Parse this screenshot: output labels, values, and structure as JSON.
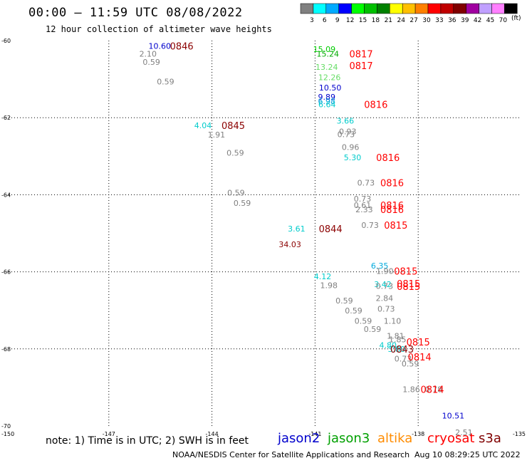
{
  "header": {
    "title": "00:00 – 11:59 UTC 08/08/2022",
    "subtitle": "12 hour collection of altimeter wave heights"
  },
  "legend": {
    "units": "(ft)",
    "bins": [
      {
        "label": "3",
        "color": "#808080"
      },
      {
        "label": "6",
        "color": "#00ffff"
      },
      {
        "label": "9",
        "color": "#00aaff"
      },
      {
        "label": "12",
        "color": "#0000ff"
      },
      {
        "label": "15",
        "color": "#00ff00"
      },
      {
        "label": "18",
        "color": "#00c000"
      },
      {
        "label": "21",
        "color": "#008000"
      },
      {
        "label": "24",
        "color": "#ffff00"
      },
      {
        "label": "27",
        "color": "#ffc000"
      },
      {
        "label": "30",
        "color": "#ff8000"
      },
      {
        "label": "33",
        "color": "#ff0000"
      },
      {
        "label": "36",
        "color": "#c00000"
      },
      {
        "label": "39",
        "color": "#800000"
      },
      {
        "label": "42",
        "color": "#a000a0"
      },
      {
        "label": "45",
        "color": "#c0a0ff"
      },
      {
        "label": "70",
        "color": "#ff80ff"
      },
      {
        "label": "",
        "color": "#000000"
      }
    ]
  },
  "footer": {
    "note": "note: 1) Time is in UTC; 2) SWH is in feet",
    "credit": "NOAA/NESDIS Center for Satellite Applications and Research",
    "timestamp": "Aug 10 08:29:25 UTC 2022",
    "satellites": [
      {
        "name": "jason2",
        "color": "#0000cc"
      },
      {
        "name": "jason3",
        "color": "#00a000"
      },
      {
        "name": "altika",
        "color": "#ff8c00"
      },
      {
        "name": "cryosat",
        "color": "#ff0000"
      },
      {
        "name": "s3a",
        "color": "#800000"
      }
    ]
  },
  "chart_data": {
    "type": "scatter",
    "xlim": [
      -150,
      -135
    ],
    "ylim": [
      -70,
      -60
    ],
    "x_ticks": [
      "-150",
      "-147",
      "-144",
      "-141",
      "-138",
      "-135"
    ],
    "y_ticks": [
      "-60",
      "-62",
      "-64",
      "-66",
      "-68",
      "-70"
    ],
    "grid": true,
    "points": [
      {
        "lon": -145.52,
        "lat": -60.14,
        "value": "10.60",
        "color": "#0000cc"
      },
      {
        "lon": -145.86,
        "lat": -60.34,
        "value": "2.10",
        "color": "#808080"
      },
      {
        "lon": -145.76,
        "lat": -60.55,
        "value": "0.59",
        "color": "#808080"
      },
      {
        "lon": -145.35,
        "lat": -61.06,
        "value": "0.59",
        "color": "#808080"
      },
      {
        "lon": -144.26,
        "lat": -62.2,
        "value": "4.04",
        "color": "#00cccc"
      },
      {
        "lon": -143.87,
        "lat": -62.44,
        "value": "1.91",
        "color": "#808080"
      },
      {
        "lon": -143.32,
        "lat": -62.91,
        "value": "0.59",
        "color": "#808080"
      },
      {
        "lon": -143.3,
        "lat": -63.95,
        "value": "0.59",
        "color": "#808080"
      },
      {
        "lon": -143.12,
        "lat": -64.21,
        "value": "0.59",
        "color": "#808080"
      },
      {
        "lon": -141.54,
        "lat": -64.88,
        "value": "3.61",
        "color": "#00cccc"
      },
      {
        "lon": -141.73,
        "lat": -65.29,
        "value": "34.03",
        "color": "#8b0000"
      },
      {
        "lon": -140.73,
        "lat": -60.22,
        "value": "15.09",
        "color": "#00cc00"
      },
      {
        "lon": -140.63,
        "lat": -60.34,
        "value": "15.24",
        "color": "#00aa00"
      },
      {
        "lon": -140.66,
        "lat": -60.68,
        "value": "13.24",
        "color": "#66dd66"
      },
      {
        "lon": -140.58,
        "lat": -60.95,
        "value": "12.26",
        "color": "#66dd66"
      },
      {
        "lon": -140.56,
        "lat": -61.22,
        "value": "10.50",
        "color": "#0000cc"
      },
      {
        "lon": -140.66,
        "lat": -61.46,
        "value": "9.89",
        "color": "#0000cc"
      },
      {
        "lon": -140.66,
        "lat": -61.57,
        "value": "6.98",
        "color": "#0099dd"
      },
      {
        "lon": -140.65,
        "lat": -61.65,
        "value": "6.64",
        "color": "#00cccc"
      },
      {
        "lon": -140.12,
        "lat": -62.08,
        "value": "3.66",
        "color": "#00cccc"
      },
      {
        "lon": -140.05,
        "lat": -62.36,
        "value": "0.93",
        "color": "#808080"
      },
      {
        "lon": -140.1,
        "lat": -62.43,
        "value": "0.73",
        "color": "#808080"
      },
      {
        "lon": -139.97,
        "lat": -62.76,
        "value": "0.96",
        "color": "#808080"
      },
      {
        "lon": -139.91,
        "lat": -63.03,
        "value": "5.30",
        "color": "#00cccc"
      },
      {
        "lon": -139.52,
        "lat": -63.69,
        "value": "0.73",
        "color": "#808080"
      },
      {
        "lon": -139.62,
        "lat": -64.1,
        "value": "0.73",
        "color": "#808080"
      },
      {
        "lon": -139.62,
        "lat": -64.27,
        "value": "0.61",
        "color": "#808080"
      },
      {
        "lon": -139.57,
        "lat": -64.38,
        "value": "2.33",
        "color": "#808080"
      },
      {
        "lon": -139.4,
        "lat": -64.79,
        "value": "0.73",
        "color": "#808080"
      },
      {
        "lon": -139.12,
        "lat": -65.84,
        "value": "6.35",
        "color": "#00aadd"
      },
      {
        "lon": -138.97,
        "lat": -65.98,
        "value": "1.90",
        "color": "#808080"
      },
      {
        "lon": -140.78,
        "lat": -66.12,
        "value": "4.12",
        "color": "#00cccc"
      },
      {
        "lon": -140.6,
        "lat": -66.35,
        "value": "1.98",
        "color": "#808080"
      },
      {
        "lon": -139.03,
        "lat": -66.32,
        "value": "3.42",
        "color": "#00cccc"
      },
      {
        "lon": -138.98,
        "lat": -66.37,
        "value": "0.73",
        "color": "#808080"
      },
      {
        "lon": -138.98,
        "lat": -66.68,
        "value": "2.84",
        "color": "#808080"
      },
      {
        "lon": -140.15,
        "lat": -66.75,
        "value": "0.59",
        "color": "#808080"
      },
      {
        "lon": -139.88,
        "lat": -67.01,
        "value": "0.59",
        "color": "#808080"
      },
      {
        "lon": -138.93,
        "lat": -66.96,
        "value": "0.73",
        "color": "#808080"
      },
      {
        "lon": -139.6,
        "lat": -67.27,
        "value": "0.59",
        "color": "#808080"
      },
      {
        "lon": -138.75,
        "lat": -67.27,
        "value": "1.10",
        "color": "#808080"
      },
      {
        "lon": -139.33,
        "lat": -67.49,
        "value": "0.59",
        "color": "#808080"
      },
      {
        "lon": -138.66,
        "lat": -67.66,
        "value": "1.81",
        "color": "#808080"
      },
      {
        "lon": -138.6,
        "lat": -67.75,
        "value": "1.85",
        "color": "#808080"
      },
      {
        "lon": -138.88,
        "lat": -67.9,
        "value": "4.80",
        "color": "#00cccc"
      },
      {
        "lon": -138.63,
        "lat": -68.0,
        "value": "3.80",
        "color": "#00cccc"
      },
      {
        "lon": -138.44,
        "lat": -68.25,
        "value": "0.73",
        "color": "#808080"
      },
      {
        "lon": -138.23,
        "lat": -68.38,
        "value": "0.59",
        "color": "#808080"
      },
      {
        "lon": -138.2,
        "lat": -69.05,
        "value": "1.86",
        "color": "#808080"
      },
      {
        "lon": -137.55,
        "lat": -69.05,
        "value": "0.78",
        "color": "#808080"
      },
      {
        "lon": -136.98,
        "lat": -69.73,
        "value": "10.51",
        "color": "#0000cc"
      },
      {
        "lon": -136.67,
        "lat": -70.17,
        "value": "2.51",
        "color": "#808080"
      }
    ],
    "time_labels": [
      {
        "lon": -144.88,
        "lat": -60.14,
        "value": "0846",
        "color": "#8b0000"
      },
      {
        "lon": -143.38,
        "lat": -62.2,
        "value": "0845",
        "color": "#8b0000"
      },
      {
        "lon": -140.55,
        "lat": -64.88,
        "value": "0844",
        "color": "#8b0000"
      },
      {
        "lon": -138.47,
        "lat": -68.0,
        "value": "0843",
        "color": "#8b0000"
      },
      {
        "lon": -139.66,
        "lat": -60.34,
        "value": "0817",
        "color": "#ff0000"
      },
      {
        "lon": -139.66,
        "lat": -60.65,
        "value": "0817",
        "color": "#ff0000"
      },
      {
        "lon": -139.23,
        "lat": -61.65,
        "value": "0816",
        "color": "#ff0000"
      },
      {
        "lon": -138.88,
        "lat": -63.03,
        "value": "0816",
        "color": "#ff0000"
      },
      {
        "lon": -138.76,
        "lat": -63.69,
        "value": "0816",
        "color": "#ff0000"
      },
      {
        "lon": -138.76,
        "lat": -64.27,
        "value": "0816",
        "color": "#ff0000"
      },
      {
        "lon": -138.76,
        "lat": -64.38,
        "value": "0816",
        "color": "#ff0000"
      },
      {
        "lon": -138.65,
        "lat": -64.79,
        "value": "0815",
        "color": "#ff0000"
      },
      {
        "lon": -138.36,
        "lat": -65.98,
        "value": "0815",
        "color": "#ff0000"
      },
      {
        "lon": -138.28,
        "lat": -66.3,
        "value": "0815",
        "color": "#ff0000"
      },
      {
        "lon": -138.28,
        "lat": -66.38,
        "value": "0815",
        "color": "#ff0000"
      },
      {
        "lon": -138.0,
        "lat": -67.82,
        "value": "0815",
        "color": "#ff0000"
      },
      {
        "lon": -137.96,
        "lat": -68.21,
        "value": "0814",
        "color": "#ff0000"
      },
      {
        "lon": -137.59,
        "lat": -69.05,
        "value": "0814",
        "color": "#ff0000"
      }
    ]
  }
}
